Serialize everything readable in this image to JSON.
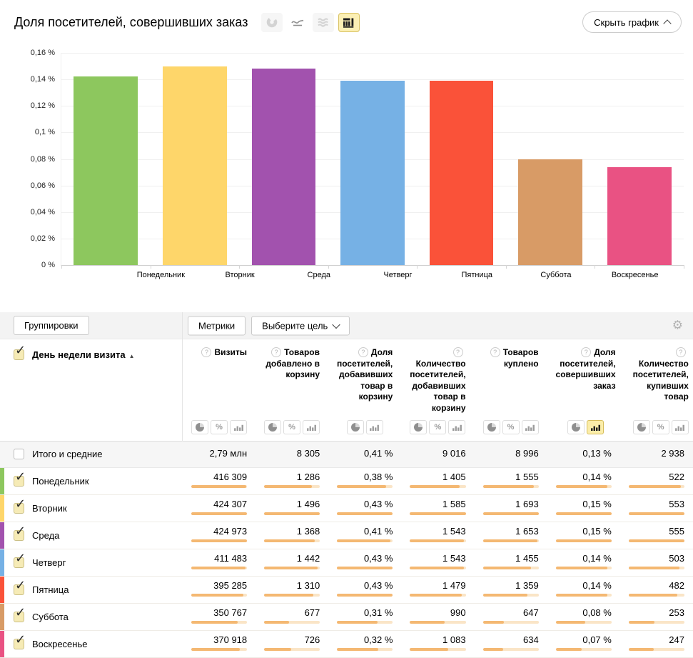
{
  "header": {
    "title": "Доля посетителей, совершивших заказ",
    "hide_chart_label": "Скрыть график",
    "chart_type_icons": [
      {
        "name": "pie-chart-icon",
        "type": "pie",
        "state": "dimmed"
      },
      {
        "name": "line-chart-icon",
        "type": "line",
        "state": "normal"
      },
      {
        "name": "stacked-chart-icon",
        "type": "stacked",
        "state": "dimmed"
      },
      {
        "name": "bar-chart-icon",
        "type": "bars",
        "state": "selected"
      }
    ]
  },
  "chart_data": {
    "type": "bar",
    "title": "Доля посетителей, совершивших заказ",
    "categories": [
      "Понедельник",
      "Вторник",
      "Среда",
      "Четверг",
      "Пятница",
      "Суббота",
      "Воскресенье"
    ],
    "values": [
      0.142,
      0.15,
      0.148,
      0.139,
      0.139,
      0.08,
      0.074
    ],
    "unit": "%",
    "bar_colors": [
      "#8DC75E",
      "#FED66A",
      "#A252AE",
      "#76B1E5",
      "#FA5239",
      "#D89B66",
      "#E95283"
    ],
    "xlabel": "",
    "ylabel": "",
    "ylim": [
      0,
      0.16
    ],
    "ytick_step": 0.02,
    "ytick_labels": [
      "0,16 %",
      "0,14 %",
      "0,12 %",
      "0,1 %",
      "0,08 %",
      "0,06 %",
      "0,04 %",
      "0,02 %",
      "0 %"
    ],
    "grid": true,
    "legend": "none"
  },
  "toolbar": {
    "groupings_label": "Группировки",
    "metrics_label": "Метрики",
    "goal_label": "Выберите цель",
    "settings_icon": "gear-icon"
  },
  "table": {
    "dimension_header": "День недели визита",
    "sort_icon": "▲",
    "help_icon": "?",
    "columns": [
      {
        "label": "Визиты",
        "toggles": [
          "pie",
          "percent",
          "bars"
        ],
        "active": null
      },
      {
        "label": "Товаров добавлено в корзину",
        "toggles": [
          "pie",
          "percent",
          "bars"
        ],
        "active": null
      },
      {
        "label": "Доля посетителей, добавивших товар в корзину",
        "toggles": [
          "pie",
          "bars"
        ],
        "active": null
      },
      {
        "label": "Количество посетителей, добавивших товар в корзину",
        "toggles": [
          "pie",
          "percent",
          "bars"
        ],
        "active": null
      },
      {
        "label": "Товаров куплено",
        "toggles": [
          "pie",
          "percent",
          "bars"
        ],
        "active": null
      },
      {
        "label": "Доля посетителей, совершивших заказ",
        "toggles": [
          "pie",
          "bars"
        ],
        "active": "bars"
      },
      {
        "label": "Количество посетителей, купивших товар",
        "toggles": [
          "pie",
          "percent",
          "bars"
        ],
        "active": null
      }
    ],
    "totals": {
      "label": "Итого и средние",
      "checked": false,
      "values": [
        "2,79 млн",
        "8 305",
        "0,41 %",
        "9 016",
        "8 996",
        "0,13 %",
        "2 938"
      ]
    },
    "rows": [
      {
        "label": "Понедельник",
        "color": "#8DC75E",
        "checked": true,
        "cells": [
          {
            "v": "416 309",
            "f": 0.98
          },
          {
            "v": "1 286",
            "f": 0.86
          },
          {
            "v": "0,38 %",
            "f": 0.88
          },
          {
            "v": "1 405",
            "f": 0.89
          },
          {
            "v": "1 555",
            "f": 0.92
          },
          {
            "v": "0,14 %",
            "f": 0.93
          },
          {
            "v": "522",
            "f": 0.94
          }
        ]
      },
      {
        "label": "Вторник",
        "color": "#FED66A",
        "checked": true,
        "cells": [
          {
            "v": "424 307",
            "f": 1.0
          },
          {
            "v": "1 496",
            "f": 1.0
          },
          {
            "v": "0,43 %",
            "f": 1.0
          },
          {
            "v": "1 585",
            "f": 1.0
          },
          {
            "v": "1 693",
            "f": 1.0
          },
          {
            "v": "0,15 %",
            "f": 1.0
          },
          {
            "v": "553",
            "f": 1.0
          }
        ]
      },
      {
        "label": "Среда",
        "color": "#A252AE",
        "checked": true,
        "cells": [
          {
            "v": "424 973",
            "f": 1.0
          },
          {
            "v": "1 368",
            "f": 0.91
          },
          {
            "v": "0,41 %",
            "f": 0.95
          },
          {
            "v": "1 543",
            "f": 0.97
          },
          {
            "v": "1 653",
            "f": 0.98
          },
          {
            "v": "0,15 %",
            "f": 1.0
          },
          {
            "v": "555",
            "f": 1.0
          }
        ]
      },
      {
        "label": "Четверг",
        "color": "#76B1E5",
        "checked": true,
        "cells": [
          {
            "v": "411 483",
            "f": 0.97
          },
          {
            "v": "1 442",
            "f": 0.96
          },
          {
            "v": "0,43 %",
            "f": 1.0
          },
          {
            "v": "1 543",
            "f": 0.97
          },
          {
            "v": "1 455",
            "f": 0.86
          },
          {
            "v": "0,14 %",
            "f": 0.93
          },
          {
            "v": "503",
            "f": 0.91
          }
        ]
      },
      {
        "label": "Пятница",
        "color": "#FA5239",
        "checked": true,
        "cells": [
          {
            "v": "395 285",
            "f": 0.93
          },
          {
            "v": "1 310",
            "f": 0.88
          },
          {
            "v": "0,43 %",
            "f": 1.0
          },
          {
            "v": "1 479",
            "f": 0.93
          },
          {
            "v": "1 359",
            "f": 0.8
          },
          {
            "v": "0,14 %",
            "f": 0.93
          },
          {
            "v": "482",
            "f": 0.87
          }
        ]
      },
      {
        "label": "Суббота",
        "color": "#D89B66",
        "checked": true,
        "cells": [
          {
            "v": "350 767",
            "f": 0.83
          },
          {
            "v": "677",
            "f": 0.45
          },
          {
            "v": "0,31 %",
            "f": 0.72
          },
          {
            "v": "990",
            "f": 0.62
          },
          {
            "v": "647",
            "f": 0.38
          },
          {
            "v": "0,08 %",
            "f": 0.53
          },
          {
            "v": "253",
            "f": 0.46
          }
        ]
      },
      {
        "label": "Воскресенье",
        "color": "#E95283",
        "checked": true,
        "cells": [
          {
            "v": "370 918",
            "f": 0.87
          },
          {
            "v": "726",
            "f": 0.49
          },
          {
            "v": "0,32 %",
            "f": 0.74
          },
          {
            "v": "1 083",
            "f": 0.68
          },
          {
            "v": "634",
            "f": 0.37
          },
          {
            "v": "0,07 %",
            "f": 0.47
          },
          {
            "v": "247",
            "f": 0.45
          }
        ]
      }
    ]
  },
  "colors": {
    "progress_track": "#FAE5C7",
    "progress_fill": "#F4B872",
    "selected_toggle_bg": "#FBEDA9",
    "checkbox_checked_bg": "#F6EBB6"
  }
}
